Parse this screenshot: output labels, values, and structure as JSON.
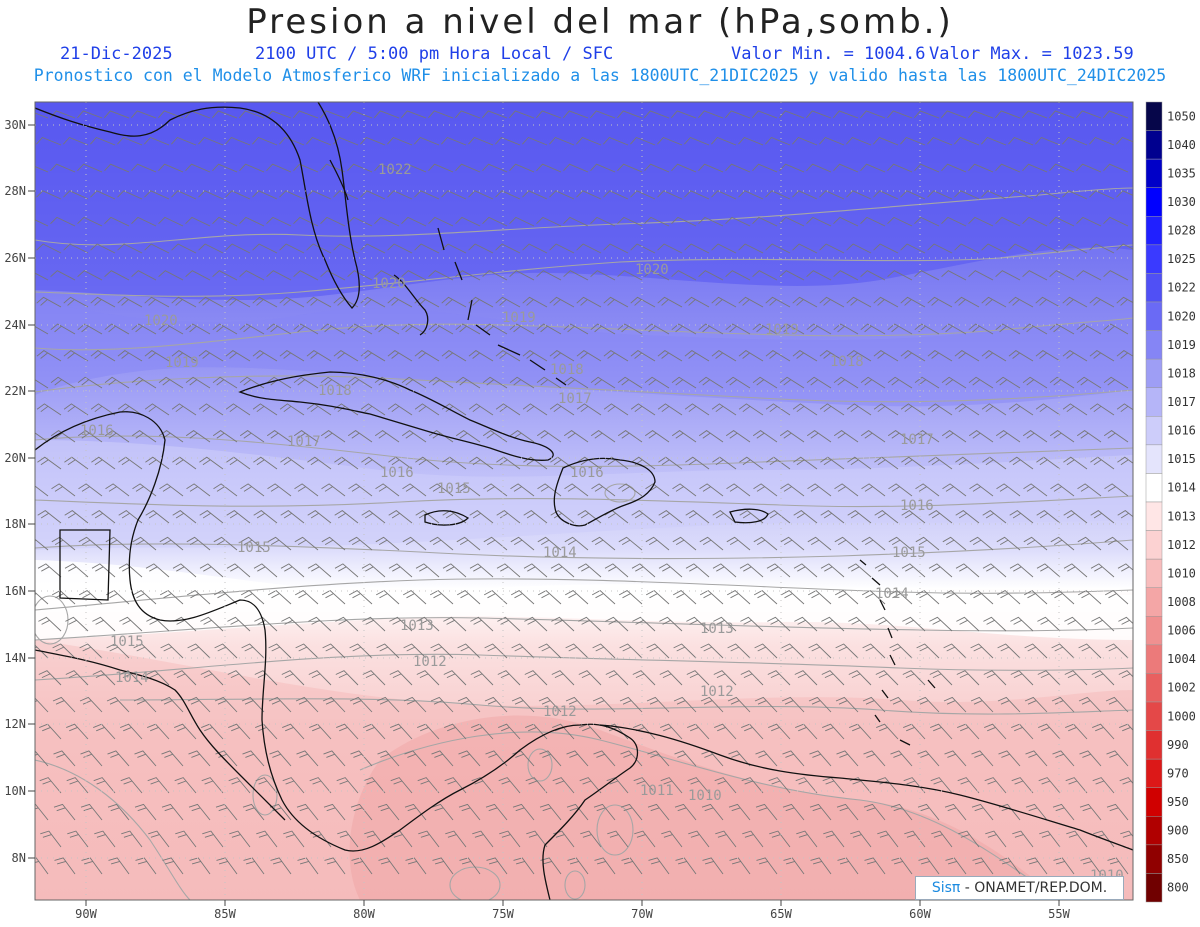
{
  "title": "Presion a nivel del mar (hPa,somb.)",
  "subtitle": {
    "date": "21-Dic-2025",
    "time": "2100 UTC / 5:00 pm Hora Local / SFC",
    "valmin": "Valor Min. = 1004.6",
    "valmax": "Valor Max. = 1023.59",
    "model": "Pronostico con el Modelo Atmosferico WRF inicializado a las 1800UTC_21DIC2025 y valido hasta las  1800UTC_24DIC2025"
  },
  "credit": {
    "brand": "Sisπ",
    "org": "- ONAMET/REP.DOM."
  },
  "axes": {
    "lat_labels": [
      "30N",
      "28N",
      "26N",
      "24N",
      "22N",
      "20N",
      "18N",
      "16N",
      "14N",
      "12N",
      "10N",
      "8N"
    ],
    "lon_labels": [
      "90W",
      "85W",
      "80W",
      "75W",
      "70W",
      "65W",
      "60W",
      "55W"
    ]
  },
  "legend": {
    "levels": [
      "1050",
      "1040",
      "1035",
      "1030",
      "1028",
      "1025",
      "1022",
      "1020",
      "1019",
      "1018",
      "1017",
      "1016",
      "1015",
      "1014",
      "1013",
      "1012",
      "1010",
      "1008",
      "1006",
      "1004",
      "1002",
      "1000",
      "990",
      "970",
      "950",
      "900",
      "850",
      "800"
    ],
    "colors": [
      "#06064a",
      "#00008f",
      "#0000c8",
      "#0000ff",
      "#2020ff",
      "#3a3aff",
      "#5050f5",
      "#6a6af5",
      "#8585f5",
      "#9e9ef5",
      "#b5b5f8",
      "#cdcdfa",
      "#e4e4fc",
      "#ffffff",
      "#ffe6e6",
      "#fcd2d2",
      "#f8bcbc",
      "#f4a6a6",
      "#f09090",
      "#ec7a7a",
      "#e86060",
      "#e44848",
      "#e03030",
      "#dc1818",
      "#d00000",
      "#b00000",
      "#900000",
      "#700000"
    ]
  },
  "isobar_labels": [
    "1022",
    "1020",
    "1020",
    "1020",
    "1019",
    "1019",
    "1019",
    "1018",
    "1018",
    "1018",
    "1017",
    "1017",
    "1017",
    "1016",
    "1016",
    "1016",
    "1016",
    "1015",
    "1015",
    "1015",
    "1015",
    "1014",
    "1014",
    "1014",
    "1013",
    "1013",
    "1012",
    "1012",
    "1012",
    "1011",
    "1010",
    "1010"
  ]
}
